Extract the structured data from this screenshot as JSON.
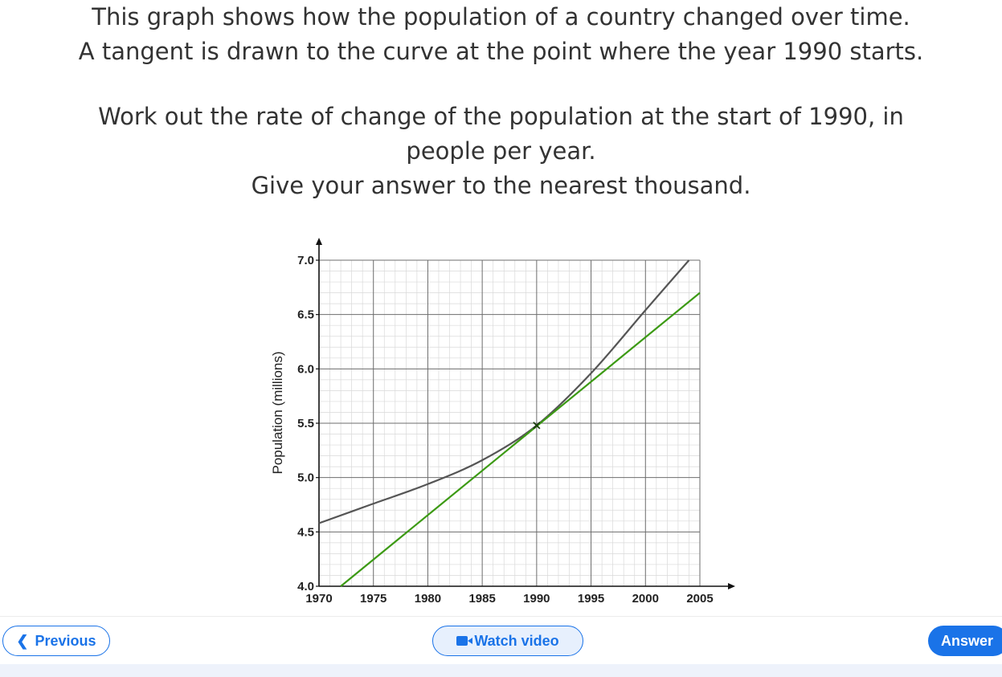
{
  "question": {
    "line1": "This graph shows how the population of a country changed over time.",
    "line2": "A tangent is drawn to the curve at the point where the year 1990 starts.",
    "line3": "Work out the rate of change of the population at the start of 1990, in",
    "line4": "people per year.",
    "line5": "Give your answer to the nearest thousand."
  },
  "nav": {
    "previous_label": "Previous",
    "watch_video_label": "Watch video",
    "answer_label": "Answer"
  },
  "colors": {
    "curve": "#555555",
    "tangent": "#3c9a14",
    "accent": "#1a73e8"
  },
  "chart_data": {
    "type": "line",
    "xlabel": "",
    "ylabel": "Population (millions)",
    "x_ticks": [
      1970,
      1975,
      1980,
      1985,
      1990,
      1995,
      2000,
      2005
    ],
    "y_ticks": [
      "4.0",
      "4.5",
      "5.0",
      "5.5",
      "6.0",
      "6.5",
      "7.0"
    ],
    "xlim": [
      1970,
      2005
    ],
    "ylim": [
      4.0,
      7.0
    ],
    "grid": true,
    "series": [
      {
        "name": "",
        "kind": "curve",
        "x": [
          1970,
          1975,
          1980,
          1985,
          1990,
          1995,
          2000,
          2004
        ],
        "y": [
          4.58,
          4.76,
          4.94,
          5.16,
          5.48,
          5.96,
          6.54,
          7.0
        ]
      },
      {
        "name": "",
        "kind": "tangent",
        "x": [
          1972,
          2005
        ],
        "y": [
          4.0,
          6.7
        ]
      }
    ],
    "marked_point": {
      "x": 1990,
      "y": 5.48
    }
  }
}
